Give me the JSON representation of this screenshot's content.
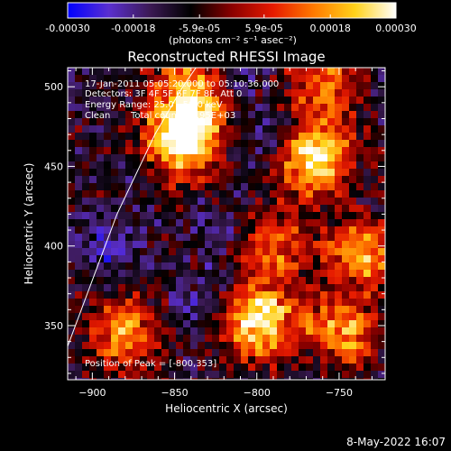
{
  "colors": {
    "background": "#000000",
    "foreground": "#ffffff"
  },
  "colorbar": {
    "tick_labels": [
      "-0.00030",
      "-0.00018",
      "-5.9e-05",
      "5.9e-05",
      "0.00018",
      "0.00030"
    ],
    "tick_values": [
      -0.0003,
      -0.00018,
      -5.9e-05,
      5.9e-05,
      0.00018,
      0.0003
    ],
    "range": [
      -0.0003,
      0.0003
    ],
    "unit_label": "(photons cm⁻² s⁻¹ asec⁻²)",
    "colormap": [
      "#0000ff",
      "#5a2fd0",
      "#3c1a55",
      "#000000",
      "#8a0000",
      "#e61a00",
      "#ff7a00",
      "#ffd21a",
      "#ffffff"
    ]
  },
  "chart_data": {
    "type": "heatmap",
    "title": "Reconstructed RHESSI Image",
    "xlabel": "Heliocentric X (arcsec)",
    "ylabel": "Heliocentric Y (arcsec)",
    "xlim": [
      -915,
      -722
    ],
    "ylim": [
      316,
      512
    ],
    "xticks": [
      -900,
      -850,
      -800,
      -750
    ],
    "yticks": [
      350,
      400,
      450,
      500
    ],
    "xtick_labels": [
      "−900",
      "−850",
      "−800",
      "−750"
    ],
    "ytick_labels": [
      "350",
      "400",
      "450",
      "500"
    ],
    "grid": false,
    "limb_line": [
      [
        -915,
        337
      ],
      [
        -885,
        420
      ],
      [
        -862,
        470
      ],
      [
        -845,
        500
      ],
      [
        -837,
        512
      ]
    ],
    "hotspots": [
      {
        "x": -845,
        "y": 465,
        "value": 0.0003
      },
      {
        "x": -765,
        "y": 455,
        "value": 0.0003
      },
      {
        "x": -800,
        "y": 353,
        "value": 0.0003
      },
      {
        "x": -840,
        "y": 495,
        "value": 0.00022
      },
      {
        "x": -750,
        "y": 345,
        "value": 0.0002
      },
      {
        "x": -735,
        "y": 395,
        "value": 0.00018
      },
      {
        "x": -880,
        "y": 345,
        "value": 0.00016
      },
      {
        "x": -790,
        "y": 400,
        "value": 0.00012
      },
      {
        "x": -760,
        "y": 500,
        "value": 0.00012
      }
    ],
    "coldspots": [
      {
        "x": -895,
        "y": 400,
        "value": -0.00014
      },
      {
        "x": -830,
        "y": 360,
        "value": -0.0002
      },
      {
        "x": -820,
        "y": 410,
        "value": -0.00012
      },
      {
        "x": -790,
        "y": 470,
        "value": -0.00016
      },
      {
        "x": -760,
        "y": 325,
        "value": -0.0001
      },
      {
        "x": -815,
        "y": 505,
        "value": -0.00012
      }
    ],
    "peak": [
      -800,
      353
    ],
    "annotations": {
      "time_range": "17-Jan-2011 05:05:20.000 to 05:10:36.000",
      "detectors": "Detectors: 3F 4F 5F 6F 7F 8F, Att 0",
      "energy": "Energy Range: 25.0 - 50.0 keV",
      "algorithm": "Clean",
      "total_counts": "Total counts: 5.95E+03",
      "peak_position": "Position of Peak = [-800,353]"
    }
  },
  "footer": {
    "date": "8-May-2022 16:07"
  }
}
